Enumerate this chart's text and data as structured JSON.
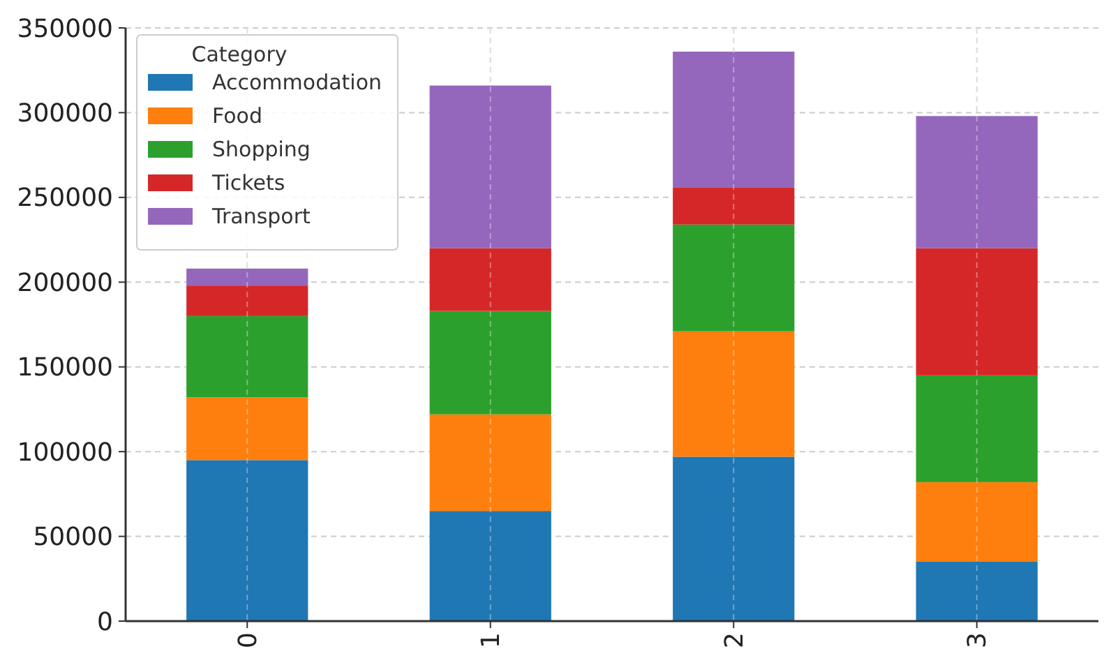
{
  "chart_data": {
    "type": "bar",
    "stacked": true,
    "categories": [
      "0",
      "1",
      "2",
      "3"
    ],
    "series": [
      {
        "name": "Accommodation",
        "color": "#1f77b4",
        "values": [
          95000,
          65000,
          97000,
          35000
        ]
      },
      {
        "name": "Food",
        "color": "#ff7f0e",
        "values": [
          37000,
          57000,
          74000,
          47000
        ]
      },
      {
        "name": "Shopping",
        "color": "#2ca02c",
        "values": [
          48000,
          61000,
          63000,
          63000
        ]
      },
      {
        "name": "Tickets",
        "color": "#d62728",
        "values": [
          18000,
          37000,
          22000,
          75000
        ]
      },
      {
        "name": "Transport",
        "color": "#9467bd",
        "values": [
          10000,
          96000,
          80000,
          78000
        ]
      }
    ],
    "ylim": [
      0,
      350000
    ],
    "yticks": [
      0,
      50000,
      100000,
      150000,
      200000,
      250000,
      300000,
      350000
    ],
    "grid": true,
    "legend": "top left",
    "legend_title": "Category"
  }
}
